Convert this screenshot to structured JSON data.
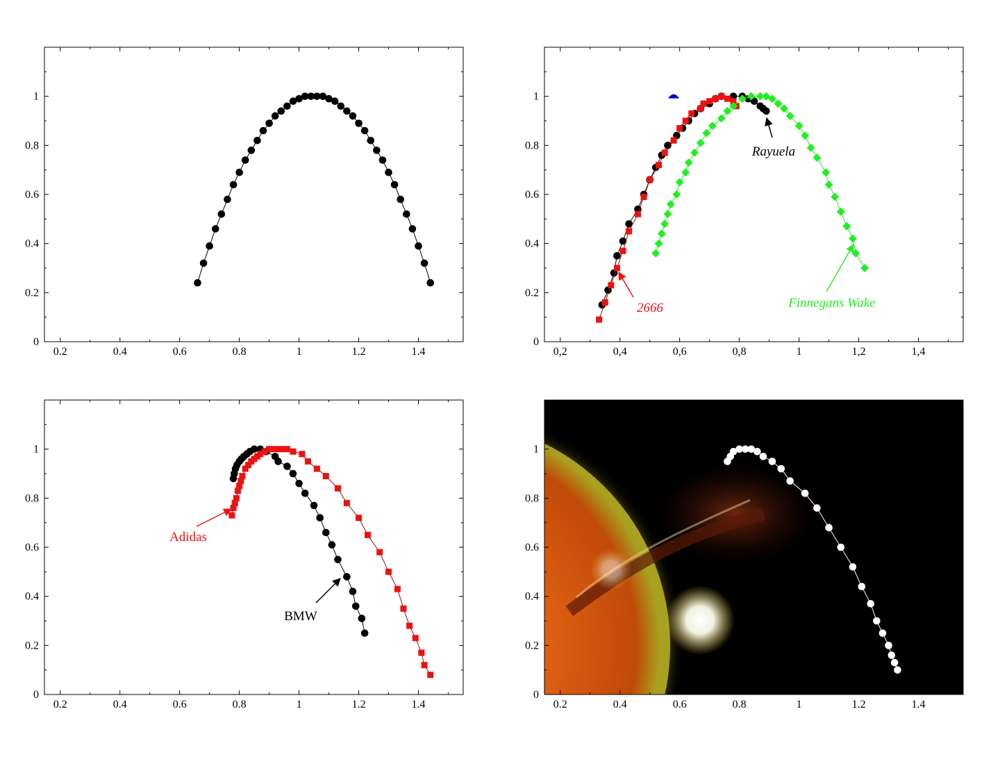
{
  "chart_data": [
    {
      "type": "scatter",
      "xlim": [
        0.147,
        1.55
      ],
      "ylim": [
        0,
        1.2
      ],
      "x_tick_labels": [
        "0.2",
        "0.4",
        "0.6",
        "0.8",
        "1",
        "1.2",
        "1.4"
      ],
      "y_tick_labels": [
        "0",
        "0.2",
        "0.4",
        "0.6",
        "0.8",
        "1"
      ],
      "grid": false,
      "background": "white",
      "series": [
        {
          "marker": "circle",
          "color": "#000000",
          "line": true,
          "points": [
            [
              0.66,
              0.24
            ],
            [
              0.68,
              0.32
            ],
            [
              0.7,
              0.39
            ],
            [
              0.72,
              0.46
            ],
            [
              0.74,
              0.52
            ],
            [
              0.76,
              0.58
            ],
            [
              0.78,
              0.64
            ],
            [
              0.8,
              0.69
            ],
            [
              0.82,
              0.74
            ],
            [
              0.84,
              0.78
            ],
            [
              0.86,
              0.82
            ],
            [
              0.88,
              0.86
            ],
            [
              0.9,
              0.89
            ],
            [
              0.92,
              0.92
            ],
            [
              0.94,
              0.94
            ],
            [
              0.96,
              0.96
            ],
            [
              0.98,
              0.98
            ],
            [
              1.0,
              0.99
            ],
            [
              1.02,
              1.0
            ],
            [
              1.04,
              1.0
            ],
            [
              1.06,
              1.0
            ],
            [
              1.08,
              1.0
            ],
            [
              1.1,
              0.99
            ],
            [
              1.12,
              0.98
            ],
            [
              1.14,
              0.96
            ],
            [
              1.16,
              0.94
            ],
            [
              1.18,
              0.92
            ],
            [
              1.2,
              0.89
            ],
            [
              1.22,
              0.86
            ],
            [
              1.24,
              0.82
            ],
            [
              1.26,
              0.78
            ],
            [
              1.28,
              0.74
            ],
            [
              1.3,
              0.69
            ],
            [
              1.32,
              0.64
            ],
            [
              1.34,
              0.58
            ],
            [
              1.36,
              0.52
            ],
            [
              1.38,
              0.46
            ],
            [
              1.4,
              0.39
            ],
            [
              1.42,
              0.32
            ],
            [
              1.44,
              0.24
            ]
          ]
        }
      ],
      "annotations": []
    },
    {
      "type": "scatter",
      "xlim": [
        0.147,
        1.55
      ],
      "ylim": [
        0,
        1.2
      ],
      "x_tick_labels": [
        "0,2",
        "0,4",
        "0,6",
        "0,8",
        "1",
        "1,2",
        "1,4"
      ],
      "y_tick_labels": [
        "0",
        "0.2",
        "0.4",
        "0.6",
        "0.8",
        "1"
      ],
      "grid": false,
      "background": "white",
      "series": [
        {
          "name": "Rayuela",
          "marker": "circle",
          "color": "#000000",
          "line": true,
          "points": [
            [
              0.34,
              0.15
            ],
            [
              0.36,
              0.21
            ],
            [
              0.38,
              0.28
            ],
            [
              0.39,
              0.35
            ],
            [
              0.41,
              0.41
            ],
            [
              0.43,
              0.48
            ],
            [
              0.46,
              0.54
            ],
            [
              0.48,
              0.6
            ],
            [
              0.5,
              0.66
            ],
            [
              0.52,
              0.71
            ],
            [
              0.54,
              0.76
            ],
            [
              0.56,
              0.8
            ],
            [
              0.59,
              0.84
            ],
            [
              0.61,
              0.87
            ],
            [
              0.63,
              0.9
            ],
            [
              0.65,
              0.93
            ],
            [
              0.67,
              0.95
            ],
            [
              0.7,
              0.97
            ],
            [
              0.72,
              0.99
            ],
            [
              0.74,
              1.0
            ],
            [
              0.78,
              1.0
            ],
            [
              0.81,
              1.0
            ],
            [
              0.83,
              0.99
            ],
            [
              0.85,
              0.98
            ],
            [
              0.87,
              0.96
            ],
            [
              0.88,
              0.95
            ],
            [
              0.89,
              0.94
            ]
          ]
        },
        {
          "name": "2666",
          "marker": "square",
          "color": "#ee1111",
          "line": true,
          "points": [
            [
              0.33,
              0.09
            ],
            [
              0.35,
              0.16
            ],
            [
              0.37,
              0.23
            ],
            [
              0.39,
              0.3
            ],
            [
              0.41,
              0.37
            ],
            [
              0.43,
              0.45
            ],
            [
              0.46,
              0.52
            ],
            [
              0.48,
              0.59
            ],
            [
              0.5,
              0.66
            ],
            [
              0.53,
              0.72
            ],
            [
              0.55,
              0.77
            ],
            [
              0.58,
              0.82
            ],
            [
              0.6,
              0.87
            ],
            [
              0.62,
              0.9
            ],
            [
              0.64,
              0.93
            ],
            [
              0.67,
              0.95
            ],
            [
              0.68,
              0.97
            ],
            [
              0.7,
              0.98
            ],
            [
              0.72,
              0.99
            ],
            [
              0.74,
              1.0
            ],
            [
              0.76,
              0.99
            ],
            [
              0.78,
              0.98
            ],
            [
              0.79,
              0.96
            ]
          ]
        },
        {
          "name": "Finnegans Wake",
          "marker": "diamond",
          "color": "#22ee22",
          "line": true,
          "points": [
            [
              0.52,
              0.36
            ],
            [
              0.53,
              0.4
            ],
            [
              0.54,
              0.44
            ],
            [
              0.55,
              0.48
            ],
            [
              0.56,
              0.52
            ],
            [
              0.57,
              0.56
            ],
            [
              0.59,
              0.6
            ],
            [
              0.6,
              0.65
            ],
            [
              0.62,
              0.69
            ],
            [
              0.63,
              0.73
            ],
            [
              0.65,
              0.77
            ],
            [
              0.67,
              0.81
            ],
            [
              0.69,
              0.85
            ],
            [
              0.71,
              0.88
            ],
            [
              0.74,
              0.91
            ],
            [
              0.76,
              0.94
            ],
            [
              0.78,
              0.96
            ],
            [
              0.81,
              0.99
            ],
            [
              0.84,
              1.0
            ],
            [
              0.87,
              1.0
            ],
            [
              0.89,
              1.0
            ],
            [
              0.91,
              0.99
            ],
            [
              0.93,
              0.97
            ],
            [
              0.95,
              0.95
            ],
            [
              0.97,
              0.92
            ],
            [
              1.0,
              0.88
            ],
            [
              1.02,
              0.84
            ],
            [
              1.04,
              0.79
            ],
            [
              1.06,
              0.75
            ],
            [
              1.09,
              0.69
            ],
            [
              1.1,
              0.64
            ],
            [
              1.12,
              0.59
            ],
            [
              1.14,
              0.53
            ],
            [
              1.16,
              0.47
            ],
            [
              1.18,
              0.42
            ],
            [
              1.19,
              0.36
            ],
            [
              1.22,
              0.3
            ]
          ]
        },
        {
          "marker": "triangle",
          "color": "#0000cc",
          "line": false,
          "points": [
            [
              0.58,
              1.0
            ]
          ]
        }
      ],
      "annotations": [
        {
          "text": "Rayuela",
          "color": "#000000",
          "italic": true
        },
        {
          "text": "2666",
          "color": "#ee1111",
          "italic": true
        },
        {
          "text": "Finnegans Wake",
          "color": "#22ee22",
          "italic": true
        }
      ]
    },
    {
      "type": "scatter",
      "xlim": [
        0.147,
        1.55
      ],
      "ylim": [
        0,
        1.2
      ],
      "x_tick_labels": [
        "0.2",
        "0.4",
        "0.6",
        "0.8",
        "1",
        "1.2",
        "1.4"
      ],
      "y_tick_labels": [
        "0",
        "0.2",
        "0.4",
        "0.6",
        "0.8",
        "1"
      ],
      "grid": false,
      "background": "white",
      "series": [
        {
          "name": "BMW",
          "marker": "circle",
          "color": "#000000",
          "line": true,
          "points": [
            [
              0.78,
              0.88
            ],
            [
              0.783,
              0.9
            ],
            [
              0.787,
              0.92
            ],
            [
              0.792,
              0.935
            ],
            [
              0.8,
              0.95
            ],
            [
              0.807,
              0.96
            ],
            [
              0.815,
              0.97
            ],
            [
              0.825,
              0.98
            ],
            [
              0.835,
              0.99
            ],
            [
              0.85,
              1.0
            ],
            [
              0.87,
              1.0
            ],
            [
              0.89,
              0.99
            ],
            [
              0.92,
              0.97
            ],
            [
              0.93,
              0.95
            ],
            [
              0.96,
              0.93
            ],
            [
              0.98,
              0.9
            ],
            [
              1.0,
              0.86
            ],
            [
              1.02,
              0.82
            ],
            [
              1.05,
              0.77
            ],
            [
              1.07,
              0.72
            ],
            [
              1.09,
              0.66
            ],
            [
              1.11,
              0.61
            ],
            [
              1.13,
              0.55
            ],
            [
              1.16,
              0.48
            ],
            [
              1.18,
              0.42
            ],
            [
              1.19,
              0.36
            ],
            [
              1.21,
              0.31
            ],
            [
              1.22,
              0.25
            ]
          ]
        },
        {
          "name": "Adidas",
          "marker": "square",
          "color": "#ee1111",
          "line": true,
          "points": [
            [
              0.775,
              0.73
            ],
            [
              0.78,
              0.76
            ],
            [
              0.785,
              0.78
            ],
            [
              0.79,
              0.8
            ],
            [
              0.795,
              0.83
            ],
            [
              0.8,
              0.85
            ],
            [
              0.805,
              0.87
            ],
            [
              0.81,
              0.89
            ],
            [
              0.82,
              0.92
            ],
            [
              0.83,
              0.935
            ],
            [
              0.84,
              0.95
            ],
            [
              0.85,
              0.96
            ],
            [
              0.86,
              0.97
            ],
            [
              0.87,
              0.98
            ],
            [
              0.885,
              0.99
            ],
            [
              0.9,
              1.0
            ],
            [
              0.92,
              1.0
            ],
            [
              0.94,
              1.0
            ],
            [
              0.96,
              1.0
            ],
            [
              0.98,
              0.99
            ],
            [
              1.01,
              0.98
            ],
            [
              1.03,
              0.95
            ],
            [
              1.06,
              0.92
            ],
            [
              1.09,
              0.89
            ],
            [
              1.13,
              0.84
            ],
            [
              1.16,
              0.78
            ],
            [
              1.2,
              0.72
            ],
            [
              1.23,
              0.65
            ],
            [
              1.27,
              0.58
            ],
            [
              1.3,
              0.5
            ],
            [
              1.33,
              0.43
            ],
            [
              1.35,
              0.35
            ],
            [
              1.37,
              0.28
            ],
            [
              1.39,
              0.23
            ],
            [
              1.41,
              0.17
            ],
            [
              1.42,
              0.12
            ],
            [
              1.44,
              0.08
            ]
          ]
        }
      ],
      "annotations": [
        {
          "text": "Adidas",
          "color": "#ee1111",
          "italic": false
        },
        {
          "text": "BMW",
          "color": "#000000",
          "italic": false
        }
      ]
    },
    {
      "type": "scatter",
      "xlim": [
        0.147,
        1.55
      ],
      "ylim": [
        0,
        1.2
      ],
      "x_tick_labels": [
        "0.2",
        "0.4",
        "0.6",
        "0.8",
        "1",
        "1.2",
        "1.4"
      ],
      "y_tick_labels": [
        "0",
        "0.2",
        "0.4",
        "0.6",
        "0.8",
        "1"
      ],
      "grid": false,
      "background": "solar-image",
      "series": [
        {
          "marker": "circle",
          "color": "#ffffff",
          "line": true,
          "points": [
            [
              0.76,
              0.95
            ],
            [
              0.77,
              0.97
            ],
            [
              0.78,
              0.99
            ],
            [
              0.8,
              1.0
            ],
            [
              0.82,
              1.0
            ],
            [
              0.84,
              1.0
            ],
            [
              0.86,
              0.99
            ],
            [
              0.88,
              0.97
            ],
            [
              0.91,
              0.95
            ],
            [
              0.94,
              0.92
            ],
            [
              0.97,
              0.87
            ],
            [
              1.02,
              0.82
            ],
            [
              1.06,
              0.76
            ],
            [
              1.1,
              0.68
            ],
            [
              1.14,
              0.6
            ],
            [
              1.18,
              0.52
            ],
            [
              1.21,
              0.44
            ],
            [
              1.24,
              0.37
            ],
            [
              1.26,
              0.3
            ],
            [
              1.28,
              0.25
            ],
            [
              1.3,
              0.2
            ],
            [
              1.31,
              0.16
            ],
            [
              1.32,
              0.13
            ],
            [
              1.33,
              0.1
            ]
          ]
        }
      ],
      "annotations": []
    }
  ]
}
